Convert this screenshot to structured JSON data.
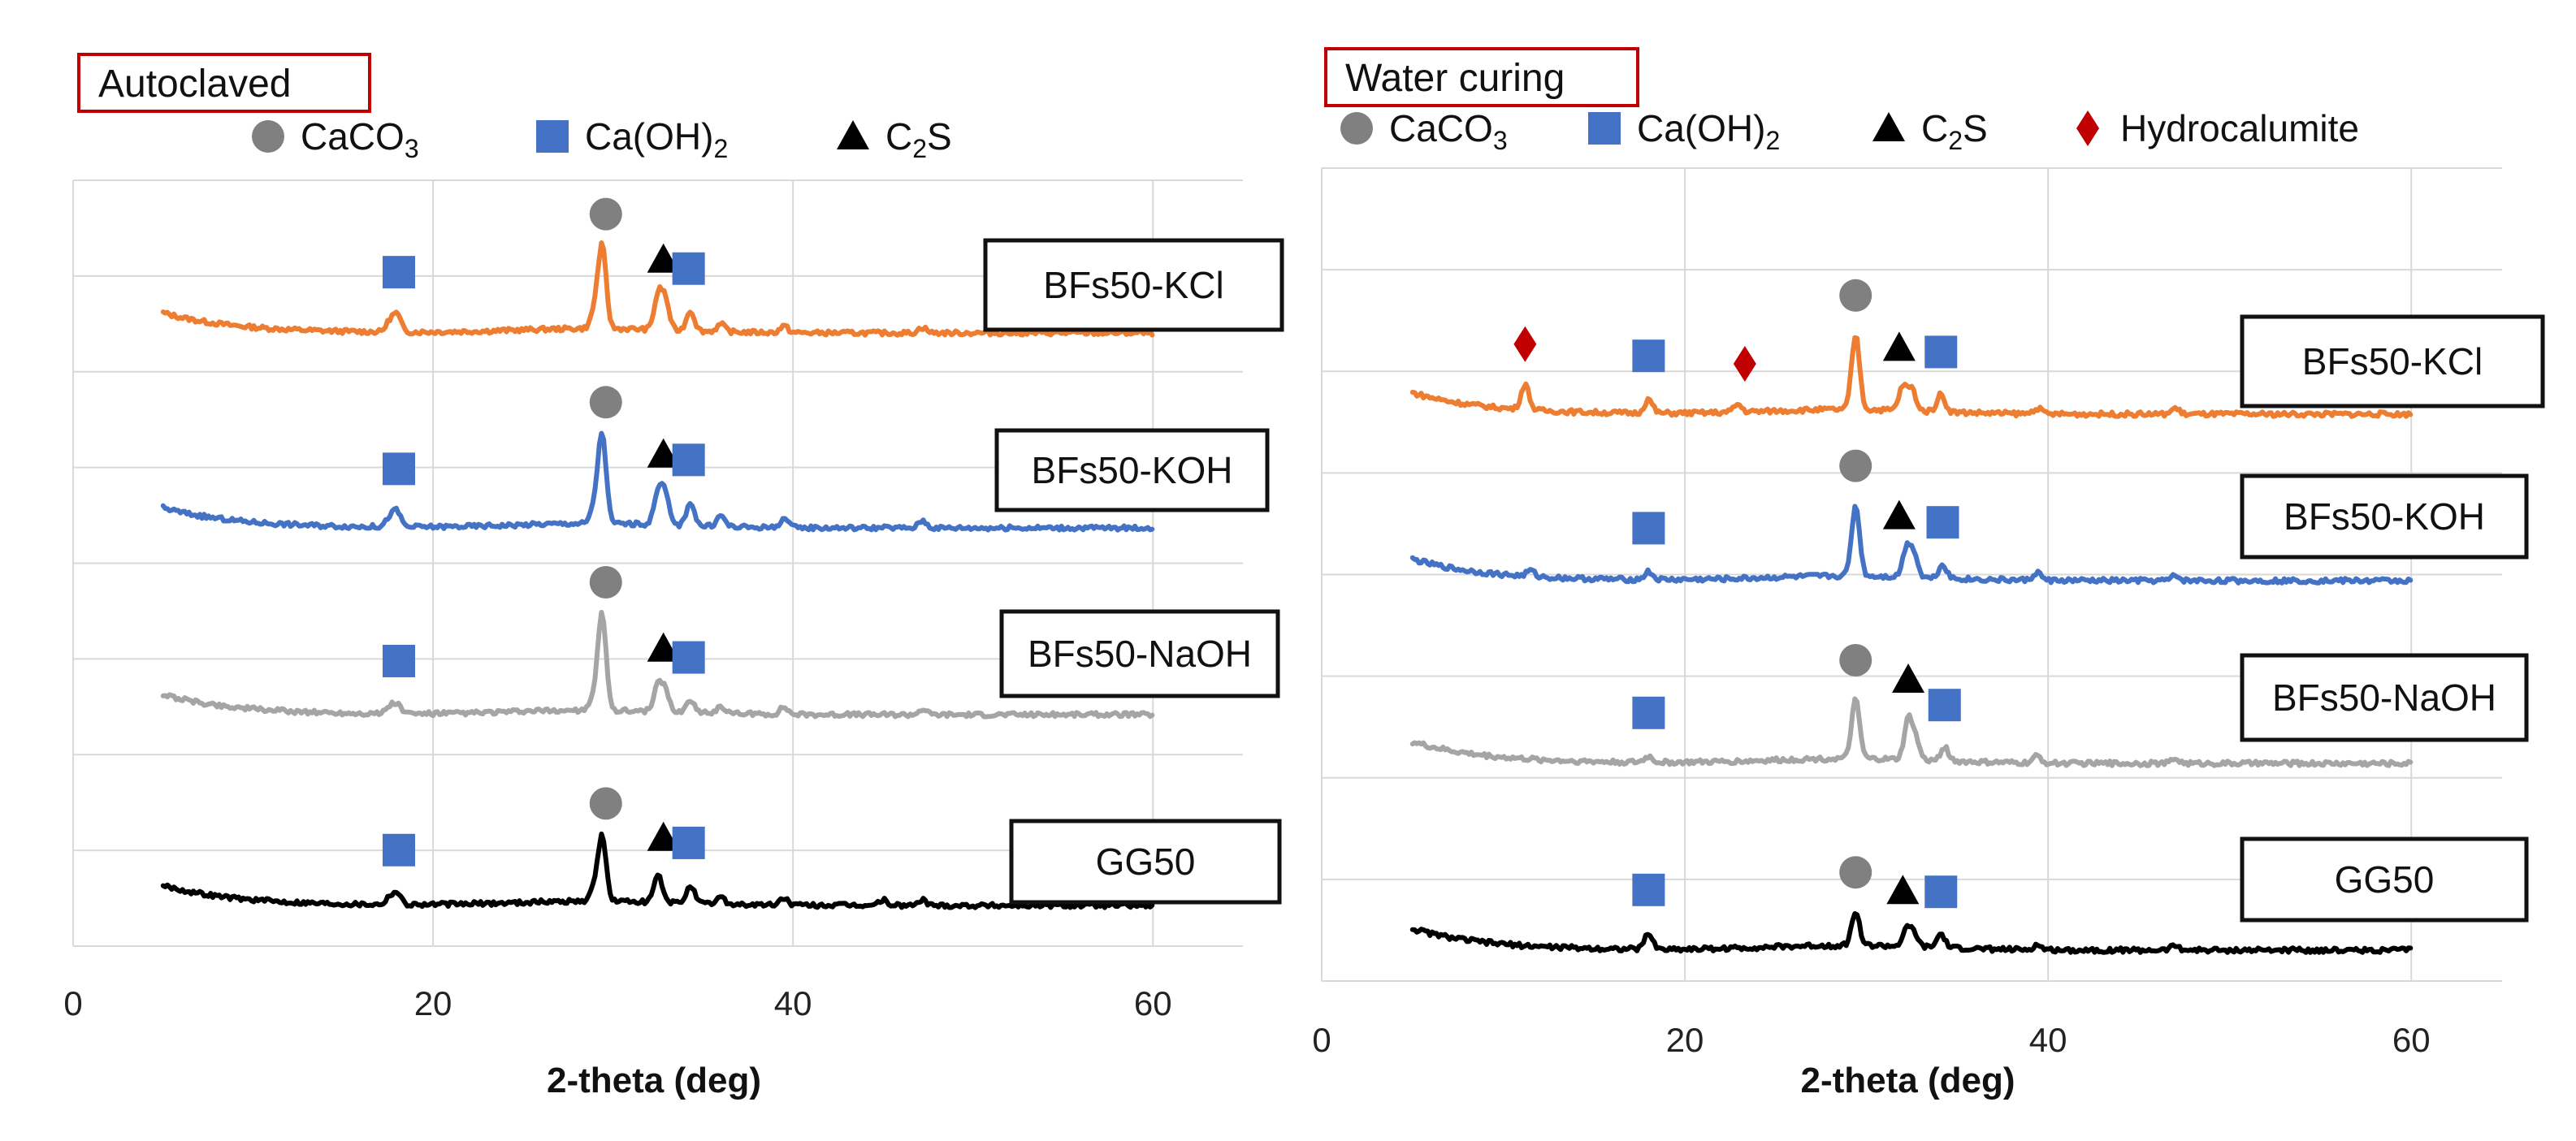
{
  "chart_data": [
    {
      "type": "line",
      "title": "Autoclaved",
      "xlabel": "2-theta (deg)",
      "ylabel": "",
      "xlim": [
        0,
        65
      ],
      "xticks": [
        "0",
        "20",
        "40",
        "60"
      ],
      "grid": true,
      "legend": [
        {
          "name": "CaCO3",
          "base": "CaCO",
          "sub": "3",
          "marker": "circle",
          "color": "#808080"
        },
        {
          "name": "Ca(OH)2",
          "base": "Ca(OH)",
          "sub": "2",
          "marker": "square",
          "color": "#4472c4"
        },
        {
          "name": "C2S",
          "base": "C",
          "sub": "2",
          "post": "S",
          "marker": "triangle",
          "color": "#000000"
        }
      ],
      "series": [
        {
          "name": "BFs50-KCl",
          "color": "#ed7d31",
          "baseline": 1.2,
          "peaks": [
            [
              17.6,
              0.28
            ],
            [
              18.0,
              0.45
            ],
            [
              29.4,
              2.2
            ],
            [
              29.0,
              0.5
            ],
            [
              32.5,
              0.9
            ],
            [
              32.9,
              0.8
            ],
            [
              34.3,
              0.55
            ],
            [
              36.0,
              0.2
            ],
            [
              39.5,
              0.18
            ],
            [
              47.2,
              0.15
            ]
          ],
          "markers": [
            {
              "type": "square",
              "x": 18.1
            },
            {
              "type": "circle",
              "x": 29.6
            },
            {
              "type": "triangle",
              "x": 32.8
            },
            {
              "type": "square",
              "x": 34.2
            }
          ]
        },
        {
          "name": "BFs50-KOH",
          "color": "#4472c4",
          "baseline": 0.0,
          "peaks": [
            [
              17.6,
              0.25
            ],
            [
              18.0,
              0.4
            ],
            [
              29.4,
              2.4
            ],
            [
              29.0,
              0.5
            ],
            [
              32.5,
              0.9
            ],
            [
              32.9,
              0.8
            ],
            [
              34.3,
              0.65
            ],
            [
              36.0,
              0.3
            ],
            [
              39.5,
              0.25
            ],
            [
              47.2,
              0.2
            ]
          ],
          "markers": [
            {
              "type": "square",
              "x": 18.1
            },
            {
              "type": "circle",
              "x": 29.6
            },
            {
              "type": "triangle",
              "x": 32.8
            },
            {
              "type": "square",
              "x": 34.2
            }
          ]
        },
        {
          "name": "BFs50-NaOH",
          "color": "#a5a5a5",
          "baseline": -1.3,
          "peaks": [
            [
              17.6,
              0.18
            ],
            [
              18.0,
              0.25
            ],
            [
              29.4,
              2.6
            ],
            [
              29.0,
              0.4
            ],
            [
              32.5,
              0.7
            ],
            [
              32.9,
              0.55
            ],
            [
              34.3,
              0.35
            ],
            [
              36.0,
              0.2
            ],
            [
              39.5,
              0.2
            ],
            [
              47.2,
              0.15
            ]
          ],
          "markers": [
            {
              "type": "square",
              "x": 18.1
            },
            {
              "type": "circle",
              "x": 29.6
            },
            {
              "type": "triangle",
              "x": 32.8
            },
            {
              "type": "square",
              "x": 34.2
            }
          ]
        },
        {
          "name": "GG50",
          "color": "#000000",
          "baseline": -2.5,
          "peaks": [
            [
              17.6,
              0.2
            ],
            [
              18.0,
              0.3
            ],
            [
              29.4,
              1.7
            ],
            [
              29.0,
              0.4
            ],
            [
              32.5,
              0.75
            ],
            [
              34.3,
              0.5
            ],
            [
              36.0,
              0.2
            ],
            [
              39.5,
              0.2
            ],
            [
              45.0,
              0.15
            ],
            [
              47.2,
              0.15
            ]
          ],
          "markers": [
            {
              "type": "square",
              "x": 18.1
            },
            {
              "type": "circle",
              "x": 29.6
            },
            {
              "type": "triangle",
              "x": 32.8
            },
            {
              "type": "square",
              "x": 34.2
            }
          ]
        }
      ]
    },
    {
      "type": "line",
      "title": "Water curing",
      "xlabel": "2-theta (deg)",
      "ylabel": "",
      "xlim": [
        0,
        65
      ],
      "xticks": [
        "0",
        "20",
        "40",
        "60"
      ],
      "grid": true,
      "legend": [
        {
          "name": "CaCO3",
          "base": "CaCO",
          "sub": "3",
          "marker": "circle",
          "color": "#808080"
        },
        {
          "name": "Ca(OH)2",
          "base": "Ca(OH)",
          "sub": "2",
          "marker": "square",
          "color": "#4472c4"
        },
        {
          "name": "C2S",
          "base": "C",
          "sub": "2",
          "post": "S",
          "marker": "triangle",
          "color": "#000000"
        },
        {
          "name": "Hydrocalumite",
          "base": "Hydrocalumite",
          "marker": "diamond",
          "color": "#c00000"
        }
      ],
      "series": [
        {
          "name": "BFs50-KCl",
          "color": "#ed7d31",
          "baseline": 1.2,
          "peaks": [
            [
              11.2,
              0.65
            ],
            [
              18.0,
              0.35
            ],
            [
              22.9,
              0.2
            ],
            [
              29.4,
              1.9
            ],
            [
              32.0,
              0.6
            ],
            [
              32.5,
              0.55
            ],
            [
              34.1,
              0.45
            ],
            [
              39.4,
              0.15
            ],
            [
              47.0,
              0.15
            ]
          ],
          "markers": [
            {
              "type": "diamond",
              "x": 11.2
            },
            {
              "type": "square",
              "x": 18.0
            },
            {
              "type": "diamond",
              "x": 23.3
            },
            {
              "type": "circle",
              "x": 29.4
            },
            {
              "type": "triangle",
              "x": 31.8
            },
            {
              "type": "square",
              "x": 34.1
            }
          ]
        },
        {
          "name": "BFs50-KOH",
          "color": "#4472c4",
          "baseline": 0.0,
          "peaks": [
            [
              11.5,
              0.15
            ],
            [
              18.0,
              0.2
            ],
            [
              29.4,
              1.8
            ],
            [
              32.2,
              0.7
            ],
            [
              32.6,
              0.6
            ],
            [
              34.2,
              0.35
            ],
            [
              39.4,
              0.2
            ],
            [
              47.0,
              0.12
            ]
          ],
          "markers": [
            {
              "type": "square",
              "x": 18.0
            },
            {
              "type": "circle",
              "x": 29.4
            },
            {
              "type": "triangle",
              "x": 31.8
            },
            {
              "type": "square",
              "x": 34.2
            }
          ]
        },
        {
          "name": "BFs50-NaOH",
          "color": "#a5a5a5",
          "baseline": -1.3,
          "peaks": [
            [
              18.0,
              0.15
            ],
            [
              29.4,
              1.5
            ],
            [
              32.3,
              1.0
            ],
            [
              32.7,
              0.5
            ],
            [
              34.3,
              0.35
            ],
            [
              39.4,
              0.18
            ],
            [
              47.0,
              0.12
            ]
          ],
          "markers": [
            {
              "type": "square",
              "x": 18.0
            },
            {
              "type": "circle",
              "x": 29.4
            },
            {
              "type": "triangle",
              "x": 32.3
            },
            {
              "type": "square",
              "x": 34.3
            }
          ]
        },
        {
          "name": "GG50",
          "color": "#000000",
          "baseline": -2.5,
          "peaks": [
            [
              18.0,
              0.4
            ],
            [
              29.4,
              0.85
            ],
            [
              32.2,
              0.4
            ],
            [
              32.6,
              0.35
            ],
            [
              34.1,
              0.35
            ],
            [
              39.4,
              0.12
            ],
            [
              47.0,
              0.12
            ]
          ],
          "markers": [
            {
              "type": "square",
              "x": 18.0
            },
            {
              "type": "circle",
              "x": 29.4
            },
            {
              "type": "triangle",
              "x": 32.0
            },
            {
              "type": "square",
              "x": 34.1
            }
          ]
        }
      ]
    }
  ]
}
